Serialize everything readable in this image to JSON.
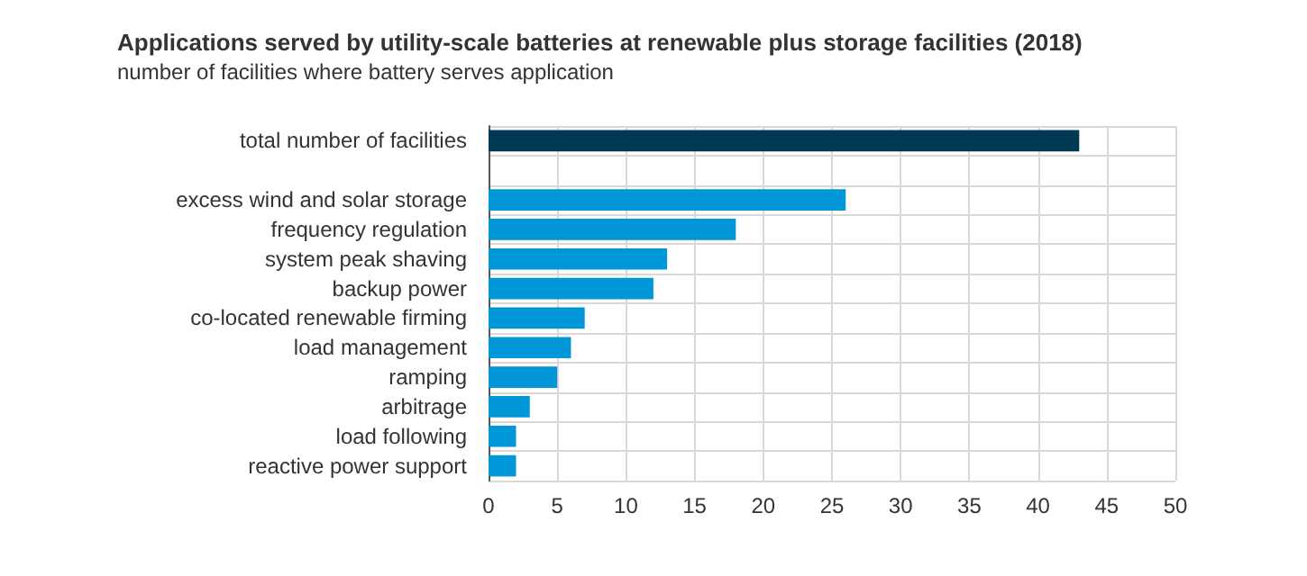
{
  "chart_data": {
    "type": "bar",
    "orientation": "horizontal",
    "title": "Applications served by utility-scale batteries at renewable plus storage facilities (2018)",
    "subtitle": "number of facilities where battery serves application",
    "categories": [
      "total number of facilities",
      null,
      "excess wind and solar storage",
      "frequency regulation",
      "system peak shaving",
      "backup power",
      "co-located renewable firming",
      "load management",
      "ramping",
      "arbitrage",
      "load following",
      "reactive power support"
    ],
    "values": [
      43,
      null,
      26,
      18,
      13,
      12,
      7,
      6,
      5,
      3,
      2,
      2
    ],
    "colors": [
      "#003953",
      null,
      "#0096d7",
      "#0096d7",
      "#0096d7",
      "#0096d7",
      "#0096d7",
      "#0096d7",
      "#0096d7",
      "#0096d7",
      "#0096d7",
      "#0096d7"
    ],
    "xlim": [
      0,
      50
    ],
    "xticks": [
      0,
      5,
      10,
      15,
      20,
      25,
      30,
      35,
      40,
      45,
      50
    ],
    "grid": true
  }
}
